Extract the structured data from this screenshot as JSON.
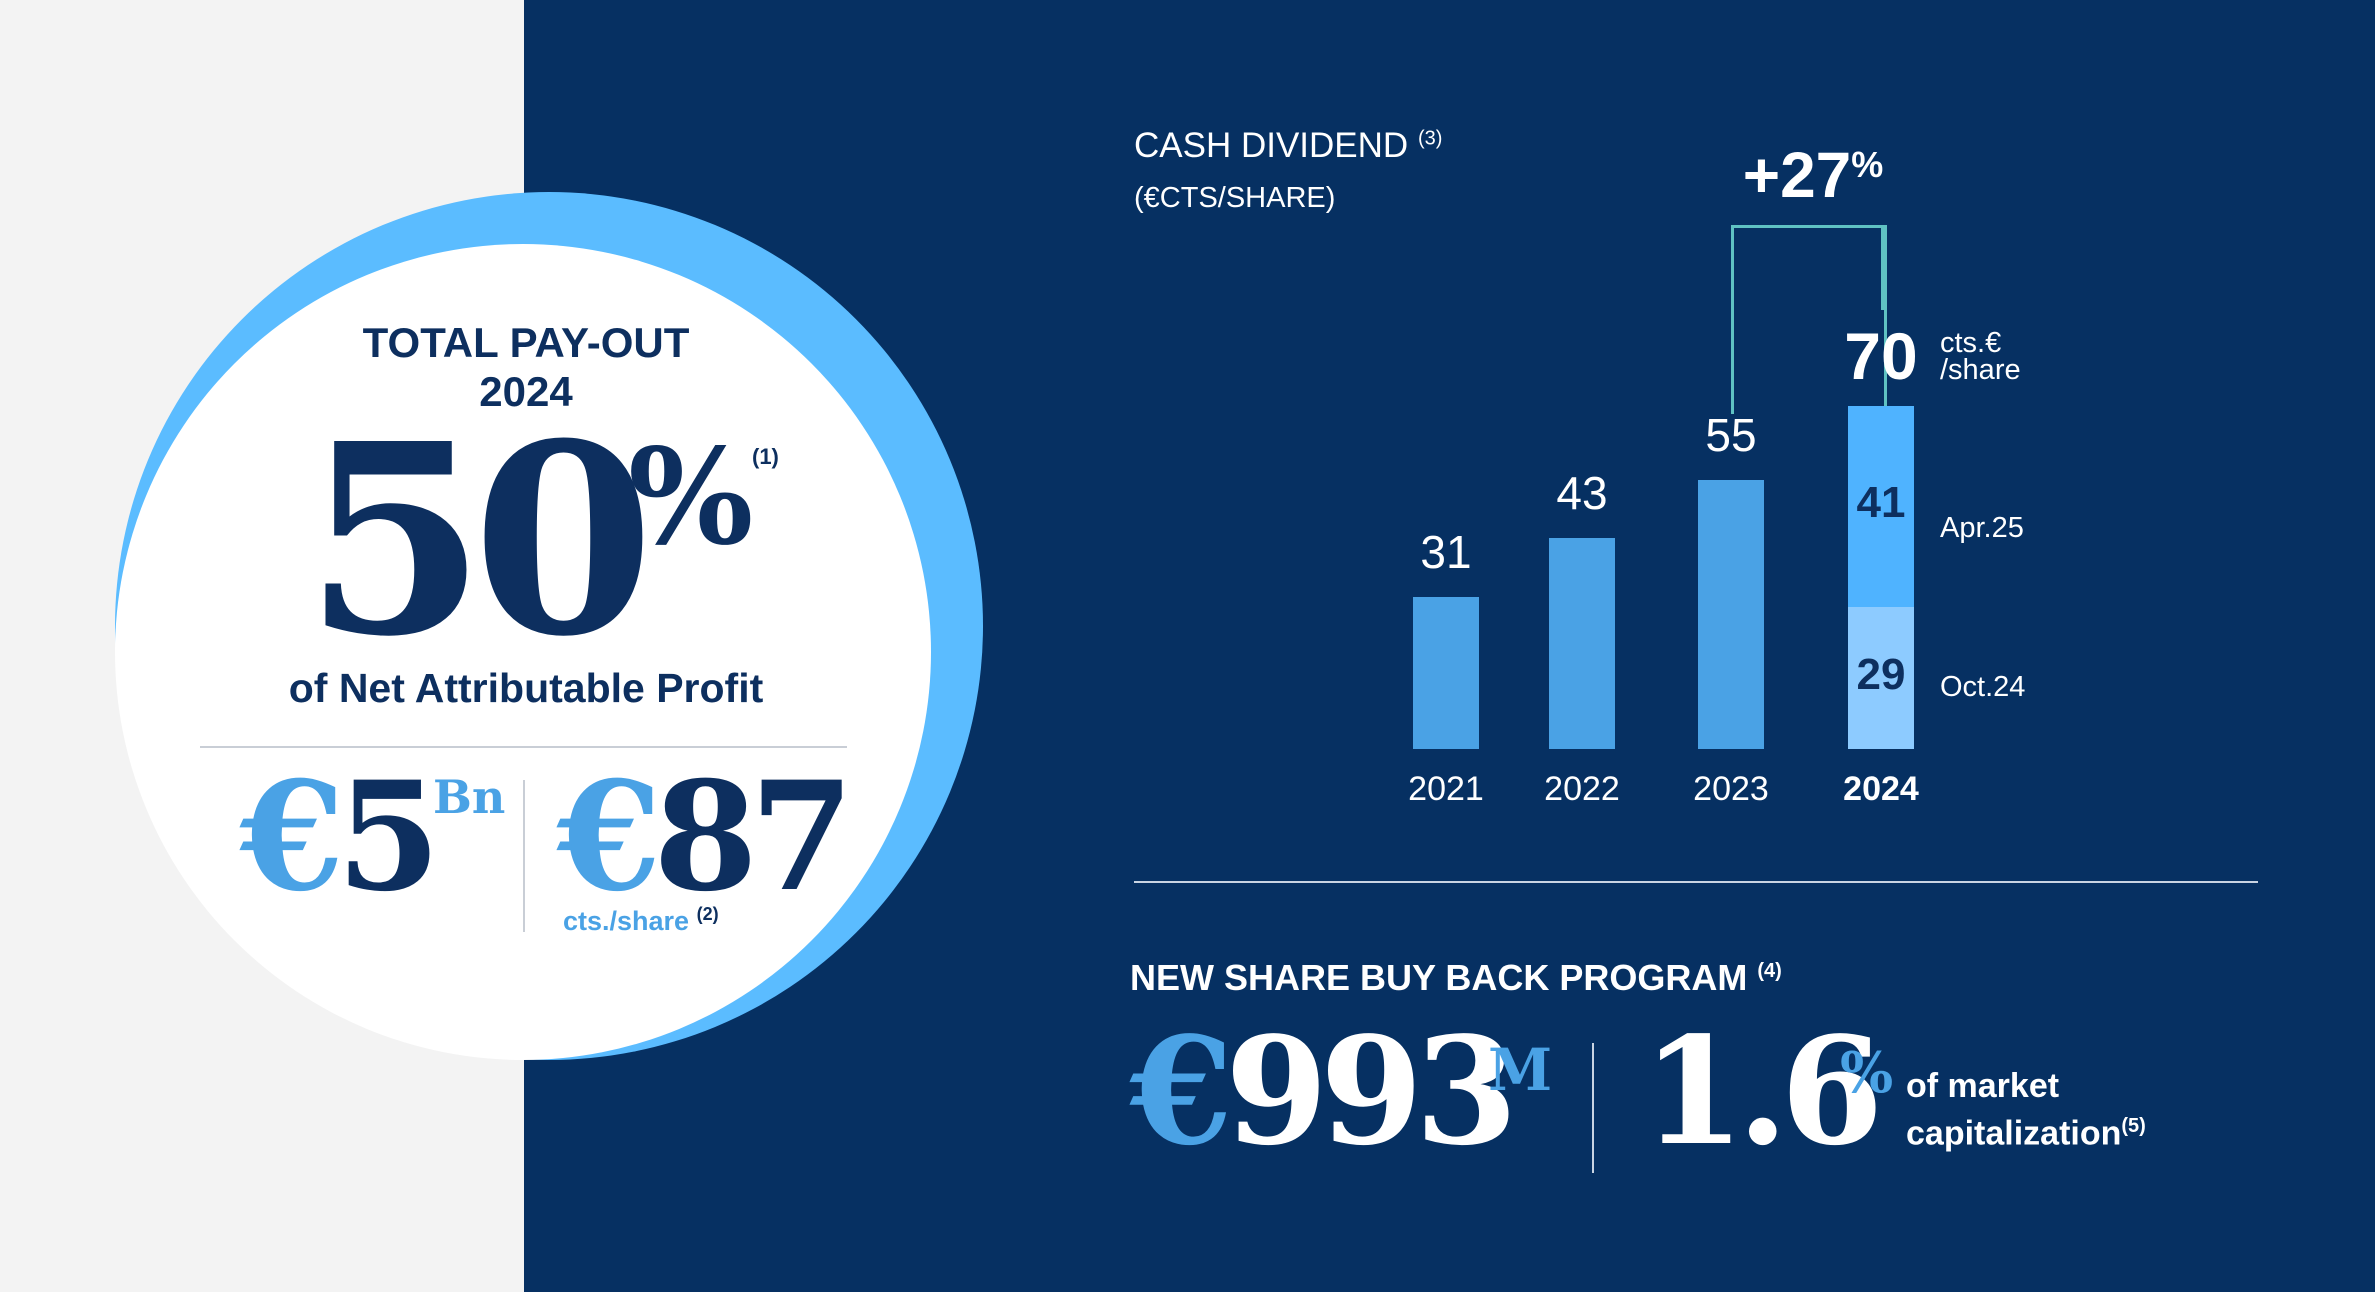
{
  "payout": {
    "title_line1": "TOTAL PAY-OUT",
    "title_line2": "2024",
    "percent_value": "50",
    "percent_sign": "%",
    "percent_note": "(1)",
    "subtitle": "of Net Attributable Profit",
    "total_currency": "€",
    "total_value": "5",
    "total_unit": "Bn",
    "per_share_currency": "€",
    "per_share_value": "87",
    "per_share_unit": "cts./share",
    "per_share_note": "(2)"
  },
  "cash_dividend": {
    "title": "CASH DIVIDEND",
    "title_note": "(3)",
    "subtitle": "(€CTS/SHARE)",
    "growth": "+27",
    "growth_sign": "%",
    "total_2024_label": "70",
    "total_2024_unit_line1": "cts.€",
    "total_2024_unit_line2": "/share",
    "value_labels": [
      "31",
      "43",
      "55"
    ],
    "year_labels": [
      "2021",
      "2022",
      "2023",
      "2024"
    ],
    "segment_labels": [
      "41",
      "29"
    ],
    "segment_names": [
      "Apr.25",
      "Oct.24"
    ]
  },
  "chart_data": {
    "type": "bar",
    "title": "CASH DIVIDEND",
    "subtitle": "(€CTS/SHARE)",
    "categories": [
      "2021",
      "2022",
      "2023",
      "2024"
    ],
    "values": [
      31,
      43,
      55,
      70
    ],
    "stack_2024": [
      {
        "name": "Oct.24",
        "value": 29,
        "color": "#8dcbff"
      },
      {
        "name": "Apr.25",
        "value": 41,
        "color": "#4fb3ff"
      }
    ],
    "annotation": "+27%",
    "bar_color": "#4aa2e5",
    "grid": false,
    "legend": "none"
  },
  "buyback": {
    "title": "NEW SHARE BUY BACK PROGRAM",
    "title_note": "(4)",
    "amount_currency": "€",
    "amount_value": "993",
    "amount_unit": "M",
    "pct_value": "1.6",
    "pct_sign": "%",
    "text_line1": "of market",
    "text_line2": "capitalization",
    "text_note": "(5)"
  },
  "colors": {
    "navy": "#063062",
    "accent_blue": "#5bbcff",
    "bar_blue": "#4aa2e5",
    "dark_text": "#0d2f5f",
    "bracket_teal": "#5fc2c3"
  }
}
